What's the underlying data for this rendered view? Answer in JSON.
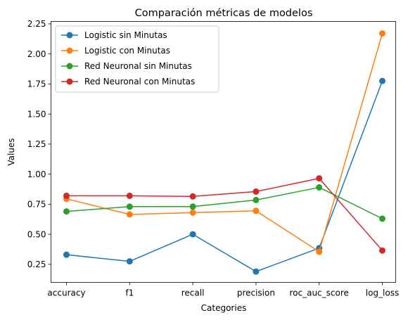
{
  "chart_data": {
    "type": "line",
    "title": "Comparación métricas de modelos",
    "xlabel": "Categories",
    "ylabel": "Values",
    "categories": [
      "accuracy",
      "f1",
      "recall",
      "precision",
      "roc_auc_score",
      "log_loss"
    ],
    "ylim": [
      0.1,
      2.27
    ],
    "yticks": [
      0.25,
      0.5,
      0.75,
      1.0,
      1.25,
      1.5,
      1.75,
      2.0,
      2.25
    ],
    "ytick_labels": [
      "0.25",
      "0.50",
      "0.75",
      "1.00",
      "1.25",
      "1.50",
      "1.75",
      "2.00",
      "2.25"
    ],
    "grid": false,
    "legend_position": "top-left",
    "series": [
      {
        "name": "Logistic sin Minutas",
        "color": "#1f77b4",
        "values": [
          0.33,
          0.275,
          0.5,
          0.19,
          0.385,
          1.775
        ]
      },
      {
        "name": "Logistic con Minutas",
        "color": "#ff7f0e",
        "values": [
          0.795,
          0.665,
          0.68,
          0.695,
          0.355,
          2.17
        ]
      },
      {
        "name": "Red Neuronal sin Minutas",
        "color": "#2ca02c",
        "values": [
          0.69,
          0.73,
          0.73,
          0.785,
          0.89,
          0.63
        ]
      },
      {
        "name": "Red Neuronal con Minutas",
        "color": "#d62728",
        "values": [
          0.82,
          0.82,
          0.815,
          0.855,
          0.965,
          0.365
        ]
      }
    ]
  }
}
